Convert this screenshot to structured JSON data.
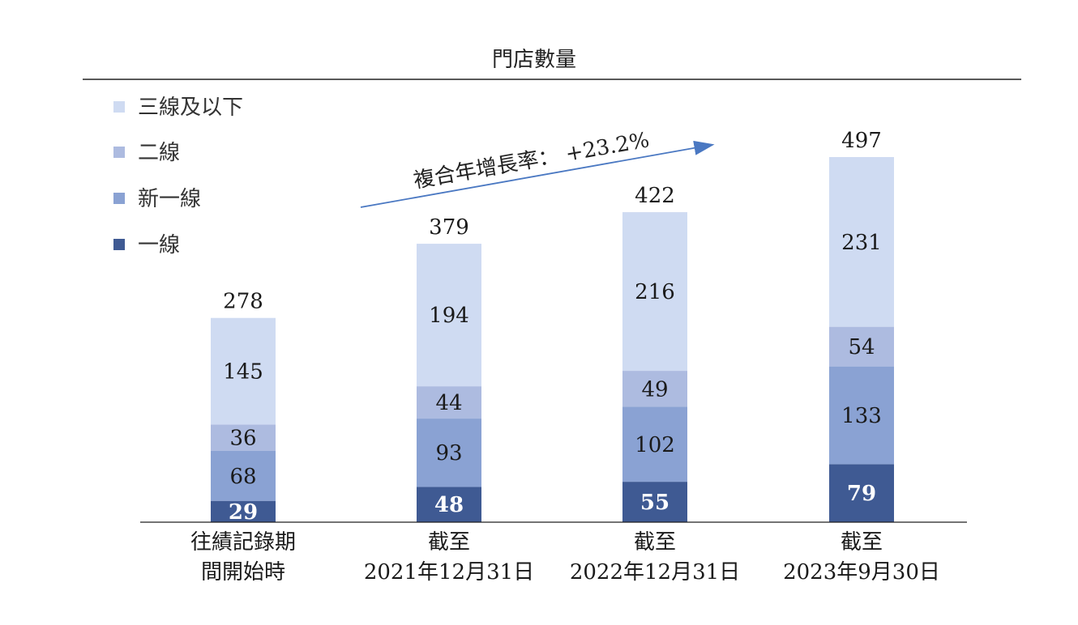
{
  "chart_data": {
    "type": "bar",
    "stacked": true,
    "title": "門店數量",
    "categories": [
      [
        "往績記錄期",
        "間開始時"
      ],
      [
        "截至",
        "2021年12月31日"
      ],
      [
        "截至",
        "2022年12月31日"
      ],
      [
        "截至",
        "2023年9月30日"
      ]
    ],
    "series": [
      {
        "name": "一線",
        "values": [
          29,
          48,
          55,
          79
        ],
        "color": "#3f5a93"
      },
      {
        "name": "新一線",
        "values": [
          68,
          93,
          102,
          133
        ],
        "color": "#8aa2d3"
      },
      {
        "name": "二線",
        "values": [
          36,
          44,
          49,
          54
        ],
        "color": "#adbbe0"
      },
      {
        "name": "三線及以下",
        "values": [
          145,
          194,
          216,
          231
        ],
        "color": "#cfdbf2"
      }
    ],
    "totals": [
      278,
      379,
      422,
      497
    ],
    "ylim": [
      0,
      497
    ],
    "legend": {
      "position": "top-left",
      "order": [
        "三線及以下",
        "二線",
        "新一線",
        "一線"
      ]
    },
    "annotation": {
      "text": "複合年增長率：  +23.2%",
      "type": "arrow"
    },
    "grid": false
  }
}
